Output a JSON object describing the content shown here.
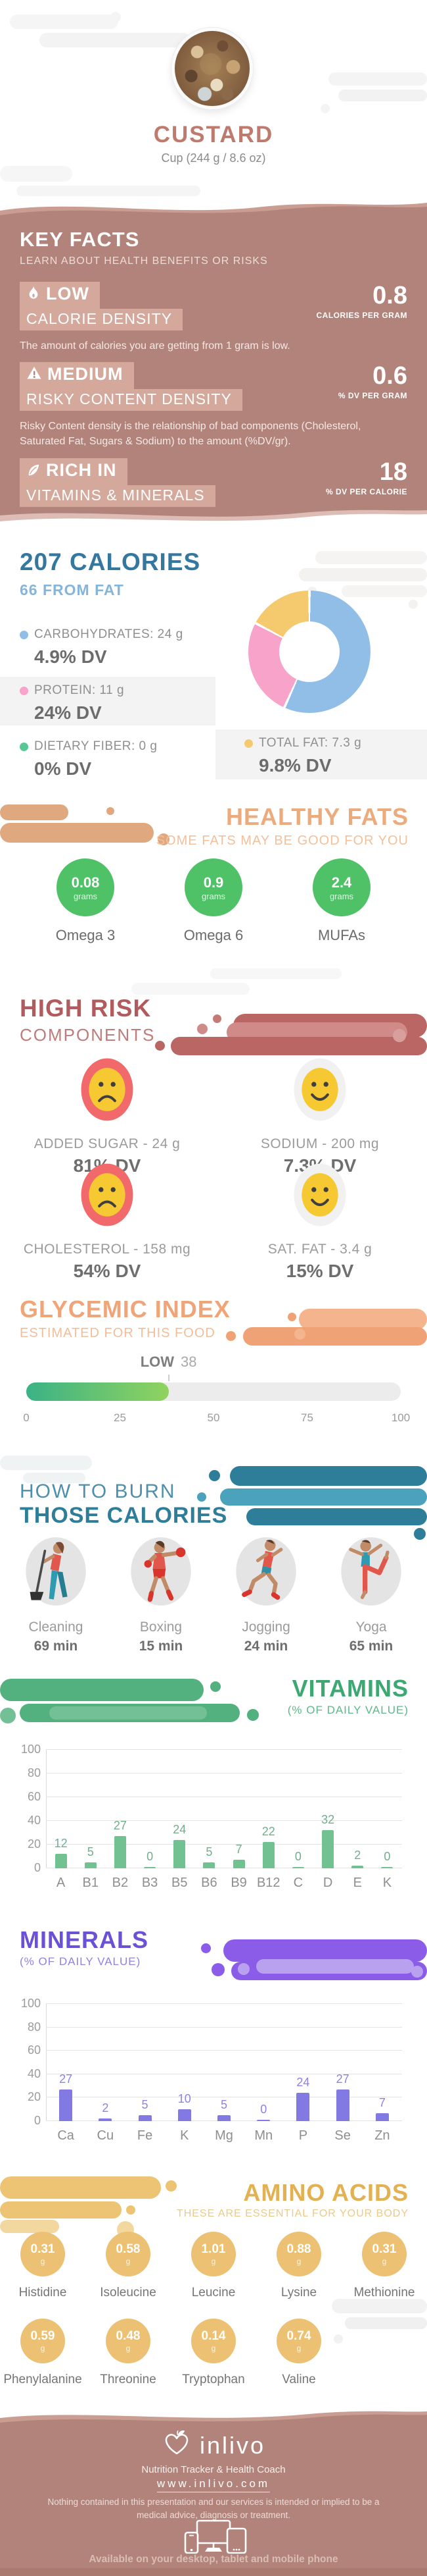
{
  "header": {
    "title": "CUSTARD",
    "serving": "Cup (244 g / 8.6 oz)",
    "photo": "custard-photo"
  },
  "key_facts": {
    "title": "KEY FACTS",
    "subtitle": "LEARN ABOUT HEALTH BENEFITS OR RISKS",
    "facts": [
      {
        "icon": "flame-icon",
        "level": "LOW",
        "name": "CALORIE DENSITY",
        "value": "0.8",
        "unit": "CALORIES PER GRAM",
        "description": "The amount of calories you are getting from 1 gram is low."
      },
      {
        "icon": "warning-icon",
        "level": "MEDIUM",
        "name": "RISKY CONTENT DENSITY",
        "value": "0.6",
        "unit": "% DV PER GRAM",
        "description": "Risky Content density is the relationship of bad components (Cholesterol, Saturated Fat, Sugars & Sodium) to the amount (%DV/gr)."
      },
      {
        "icon": "leaf-icon",
        "level": "RICH IN",
        "name": "VITAMINS & MINERALS",
        "value": "18",
        "unit": "% DV PER CALORIE",
        "description": ""
      }
    ]
  },
  "chart_data": [
    {
      "type": "pie",
      "title": "207 CALORIES",
      "subtitle": "66 FROM FAT",
      "labels": [
        "Carbohydrates",
        "Protein",
        "Total Fat"
      ],
      "values_grams": [
        24,
        11,
        7.3
      ],
      "colors": [
        "#90bee7",
        "#f8a3ca",
        "#f5c96d"
      ],
      "legend": [
        {
          "label": "CARBOHYDRATES: 24 g",
          "dv": "4.9% DV",
          "color": "#90bee7"
        },
        {
          "label": "PROTEIN: 11 g",
          "dv": "24% DV",
          "color": "#f8a3ca"
        },
        {
          "label": "DIETARY FIBER: 0 g",
          "dv": "0% DV",
          "color": "#57c795"
        },
        {
          "label": "TOTAL FAT: 7.3 g",
          "dv": "9.8% DV",
          "color": "#f5c96d"
        }
      ]
    },
    {
      "type": "bar",
      "title": "VITAMINS",
      "subtitle": "(% OF DAILY VALUE)",
      "categories": [
        "A",
        "B1",
        "B2",
        "B3",
        "B5",
        "B6",
        "B9",
        "B12",
        "C",
        "D",
        "E",
        "K"
      ],
      "values": [
        12,
        5,
        27,
        0,
        24,
        5,
        7,
        22,
        0,
        32,
        2,
        0
      ],
      "ylim": [
        0,
        100
      ],
      "yticks": [
        0,
        20,
        40,
        60,
        80,
        100
      ],
      "bar_color": "#72c190",
      "value_label_color": "#72ad8e",
      "grid": true,
      "legend_position": "none"
    },
    {
      "type": "bar",
      "title": "MINERALS",
      "subtitle": "(% OF DAILY VALUE)",
      "categories": [
        "Ca",
        "Cu",
        "Fe",
        "K",
        "Mg",
        "Mn",
        "P",
        "Se",
        "Zn"
      ],
      "values": [
        27,
        2,
        5,
        10,
        5,
        0,
        24,
        27,
        7
      ],
      "ylim": [
        0,
        100
      ],
      "yticks": [
        0,
        20,
        40,
        60,
        80,
        100
      ],
      "bar_color": "#8379e2",
      "value_label_color": "#8d82e6",
      "grid": true,
      "legend_position": "none"
    },
    {
      "type": "linear-gauge",
      "title": "GLYCEMIC INDEX",
      "subtitle": "ESTIMATED FOR THIS FOOD",
      "value": 38,
      "value_label": "LOW",
      "range": [
        0,
        100
      ],
      "ticks": [
        0,
        25,
        50,
        75,
        100
      ]
    }
  ],
  "healthy_fats": {
    "title": "HEALTHY FATS",
    "subtitle": "SOME FATS MAY BE GOOD FOR YOU",
    "items": [
      {
        "value": "0.08",
        "unit": "grams",
        "name": "Omega 3"
      },
      {
        "value": "0.9",
        "unit": "grams",
        "name": "Omega 6"
      },
      {
        "value": "2.4",
        "unit": "grams",
        "name": "MUFAs"
      }
    ]
  },
  "high_risk": {
    "title": "HIGH RISK",
    "subtitle": "COMPONENTS",
    "items": [
      {
        "name": "ADDED SUGAR - 24 g",
        "dv": "81% DV",
        "mood": "bad"
      },
      {
        "name": "SODIUM - 200 mg",
        "dv": "7.3% DV",
        "mood": "good"
      },
      {
        "name": "CHOLESTEROL - 158 mg",
        "dv": "54% DV",
        "mood": "bad"
      },
      {
        "name": "SAT. FAT - 3.4 g",
        "dv": "15% DV",
        "mood": "good"
      }
    ]
  },
  "burn": {
    "title_line1": "HOW TO BURN",
    "title_line2": "THOSE CALORIES",
    "activities": [
      {
        "name": "Cleaning",
        "duration": "69 min",
        "icon": "cleaning-icon"
      },
      {
        "name": "Boxing",
        "duration": "15 min",
        "icon": "boxing-icon"
      },
      {
        "name": "Jogging",
        "duration": "24 min",
        "icon": "jogging-icon"
      },
      {
        "name": "Yoga",
        "duration": "65 min",
        "icon": "yoga-icon"
      }
    ]
  },
  "amino_acids": {
    "title": "AMINO ACIDS",
    "subtitle": "THESE ARE ESSENTIAL FOR YOUR BODY",
    "items": [
      {
        "value": "0.31",
        "unit": "g",
        "name": "Histidine"
      },
      {
        "value": "0.58",
        "unit": "g",
        "name": "Isoleucine"
      },
      {
        "value": "1.01",
        "unit": "g",
        "name": "Leucine"
      },
      {
        "value": "0.88",
        "unit": "g",
        "name": "Lysine"
      },
      {
        "value": "0.31",
        "unit": "g",
        "name": "Methionine"
      },
      {
        "value": "0.59",
        "unit": "g",
        "name": "Phenylalanine"
      },
      {
        "value": "0.48",
        "unit": "g",
        "name": "Threonine"
      },
      {
        "value": "0.14",
        "unit": "g",
        "name": "Tryptophan"
      },
      {
        "value": "0.74",
        "unit": "g",
        "name": "Valine"
      }
    ]
  },
  "footer": {
    "brand": "inlivo",
    "tagline": "Nutrition Tracker & Health Coach",
    "website": "www.inlivo.com",
    "disclaimer": "Nothing contained in this presentation and our services is intended or implied to be a medical advice, diagnosis or treatment.",
    "availability": "Available on your desktop, tablet and mobile phone"
  },
  "colors": {
    "theme_mauve": "#b2837a",
    "accent_blue": "#34779f",
    "accent_green": "#4fc167",
    "accent_rose": "#b25b5e",
    "accent_orange": "#f0a578",
    "accent_teal": "#2e7e99",
    "accent_purple": "#6b51d6",
    "accent_gold": "#e3b052"
  }
}
